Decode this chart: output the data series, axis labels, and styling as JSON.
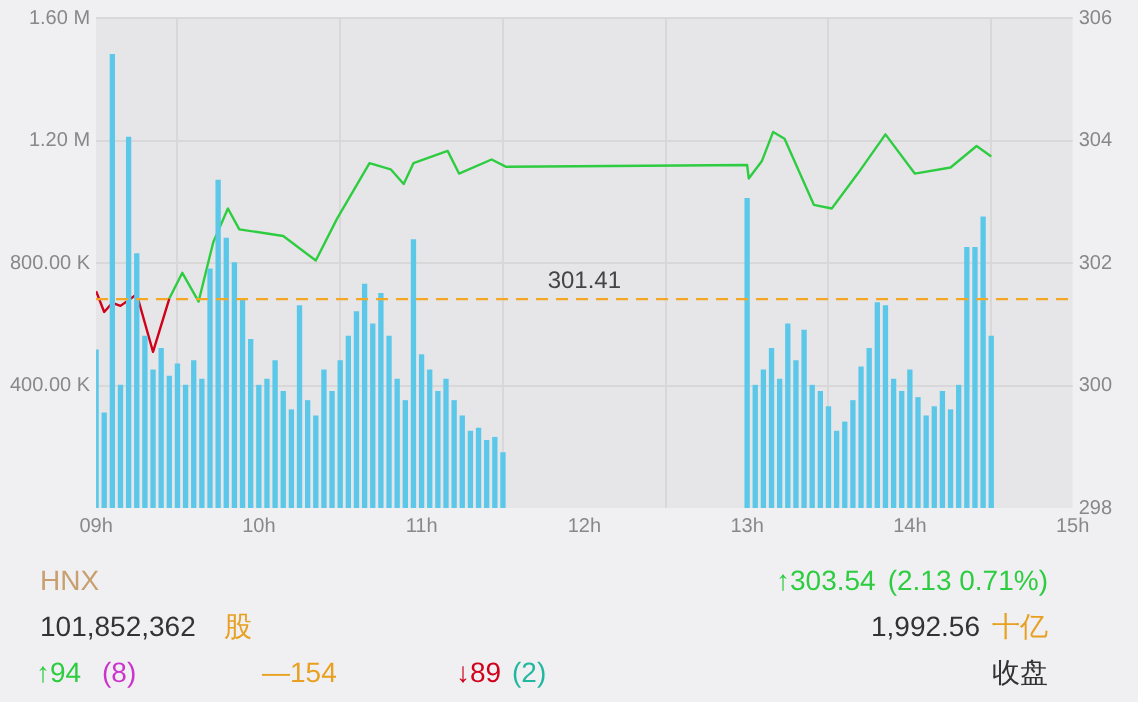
{
  "chart_data": {
    "type": "bar",
    "xlim": [
      9,
      15
    ],
    "xticks": [
      {
        "value": 9,
        "label": "09h"
      },
      {
        "value": 10,
        "label": "10h"
      },
      {
        "value": 11,
        "label": "11h"
      },
      {
        "value": 12,
        "label": "12h"
      },
      {
        "value": 13,
        "label": "13h"
      },
      {
        "value": 14,
        "label": "14h"
      },
      {
        "value": 15,
        "label": "15h"
      }
    ],
    "ylim": [
      0,
      1600000
    ],
    "yticks": [
      {
        "value": 400000,
        "label": "400.00 K"
      },
      {
        "value": 800000,
        "label": "800.00 K"
      },
      {
        "value": 1200000,
        "label": "1.20 M"
      },
      {
        "value": 1600000,
        "label": "1.60 M"
      }
    ],
    "y2lim": [
      298,
      306
    ],
    "y2ticks": [
      298,
      300,
      302,
      304,
      306
    ],
    "grid": true,
    "legend": false,
    "series": [
      {
        "color": "#5bc8ea",
        "x": [
          9.0,
          9.05,
          9.1,
          9.15,
          9.2,
          9.25,
          9.3,
          9.35,
          9.4,
          9.45,
          9.5,
          9.55,
          9.6,
          9.65,
          9.7,
          9.75,
          9.8,
          9.85,
          9.9,
          9.95,
          10.0,
          10.05,
          10.1,
          10.15,
          10.2,
          10.25,
          10.3,
          10.35,
          10.4,
          10.45,
          10.5,
          10.55,
          10.6,
          10.65,
          10.7,
          10.75,
          10.8,
          10.85,
          10.9,
          10.95,
          11.0,
          11.05,
          11.1,
          11.15,
          11.2,
          11.25,
          11.3,
          11.35,
          11.4,
          11.45,
          11.5,
          13.0,
          13.05,
          13.1,
          13.15,
          13.2,
          13.25,
          13.3,
          13.35,
          13.4,
          13.45,
          13.5,
          13.55,
          13.6,
          13.65,
          13.7,
          13.75,
          13.8,
          13.85,
          13.9,
          13.95,
          14.0,
          14.05,
          14.1,
          14.15,
          14.2,
          14.25,
          14.3,
          14.35,
          14.4,
          14.45,
          14.5
        ],
        "values": [
          515000,
          310000,
          1480000,
          400000,
          1210000,
          830000,
          560000,
          450000,
          520000,
          430000,
          470000,
          400000,
          480000,
          420000,
          780000,
          1070000,
          880000,
          800000,
          680000,
          550000,
          400000,
          420000,
          480000,
          380000,
          320000,
          660000,
          350000,
          300000,
          450000,
          380000,
          480000,
          560000,
          640000,
          730000,
          600000,
          700000,
          560000,
          420000,
          350000,
          875000,
          500000,
          450000,
          380000,
          420000,
          350000,
          300000,
          250000,
          260000,
          220000,
          230000,
          180000,
          1010000,
          400000,
          450000,
          520000,
          420000,
          600000,
          480000,
          580000,
          400000,
          380000,
          330000,
          250000,
          280000,
          350000,
          460000,
          520000,
          670000,
          660000,
          420000,
          380000,
          450000,
          360000,
          300000,
          330000,
          380000,
          320000,
          400000,
          850000,
          850000,
          950000,
          560000
        ]
      },
      {
        "type": "line",
        "axis": "y2",
        "color": "#d0021b",
        "x": [
          9.0,
          9.05,
          9.1,
          9.15,
          9.25,
          9.35,
          9.45
        ],
        "values": [
          301.54,
          301.2,
          301.35,
          301.3,
          301.49,
          300.55,
          301.42
        ]
      },
      {
        "type": "line",
        "axis": "y2",
        "color": "#2ecc40",
        "x": [
          9.45,
          9.53,
          9.63,
          9.72,
          9.81,
          9.88,
          10.15,
          10.35,
          10.48,
          10.68,
          10.81,
          10.89,
          10.95,
          11.16,
          11.23,
          11.43,
          11.52,
          13.0,
          13.01,
          13.09,
          13.16,
          13.23,
          13.41,
          13.52,
          13.68,
          13.85,
          14.03,
          14.25,
          14.41,
          14.5
        ],
        "values": [
          301.42,
          301.84,
          301.37,
          302.34,
          302.89,
          302.55,
          302.44,
          302.04,
          302.72,
          303.63,
          303.53,
          303.29,
          303.63,
          303.83,
          303.46,
          303.69,
          303.57,
          303.6,
          303.38,
          303.66,
          304.14,
          304.03,
          302.95,
          302.89,
          303.46,
          304.1,
          303.46,
          303.56,
          303.91,
          303.74
        ]
      }
    ],
    "ref_lines": [
      {
        "axis": "y2",
        "value": 301.41,
        "label": "301.41",
        "color": "#f5a623",
        "line_style": "dashed"
      }
    ],
    "annotations": [
      "HNX",
      "101,852,362",
      "股",
      "↑94",
      "(8)",
      "—154",
      "↓89",
      "(2)",
      "↑303.54",
      "(2.13 0.71%)",
      "1,992.56",
      "十亿",
      "收盘"
    ]
  }
}
